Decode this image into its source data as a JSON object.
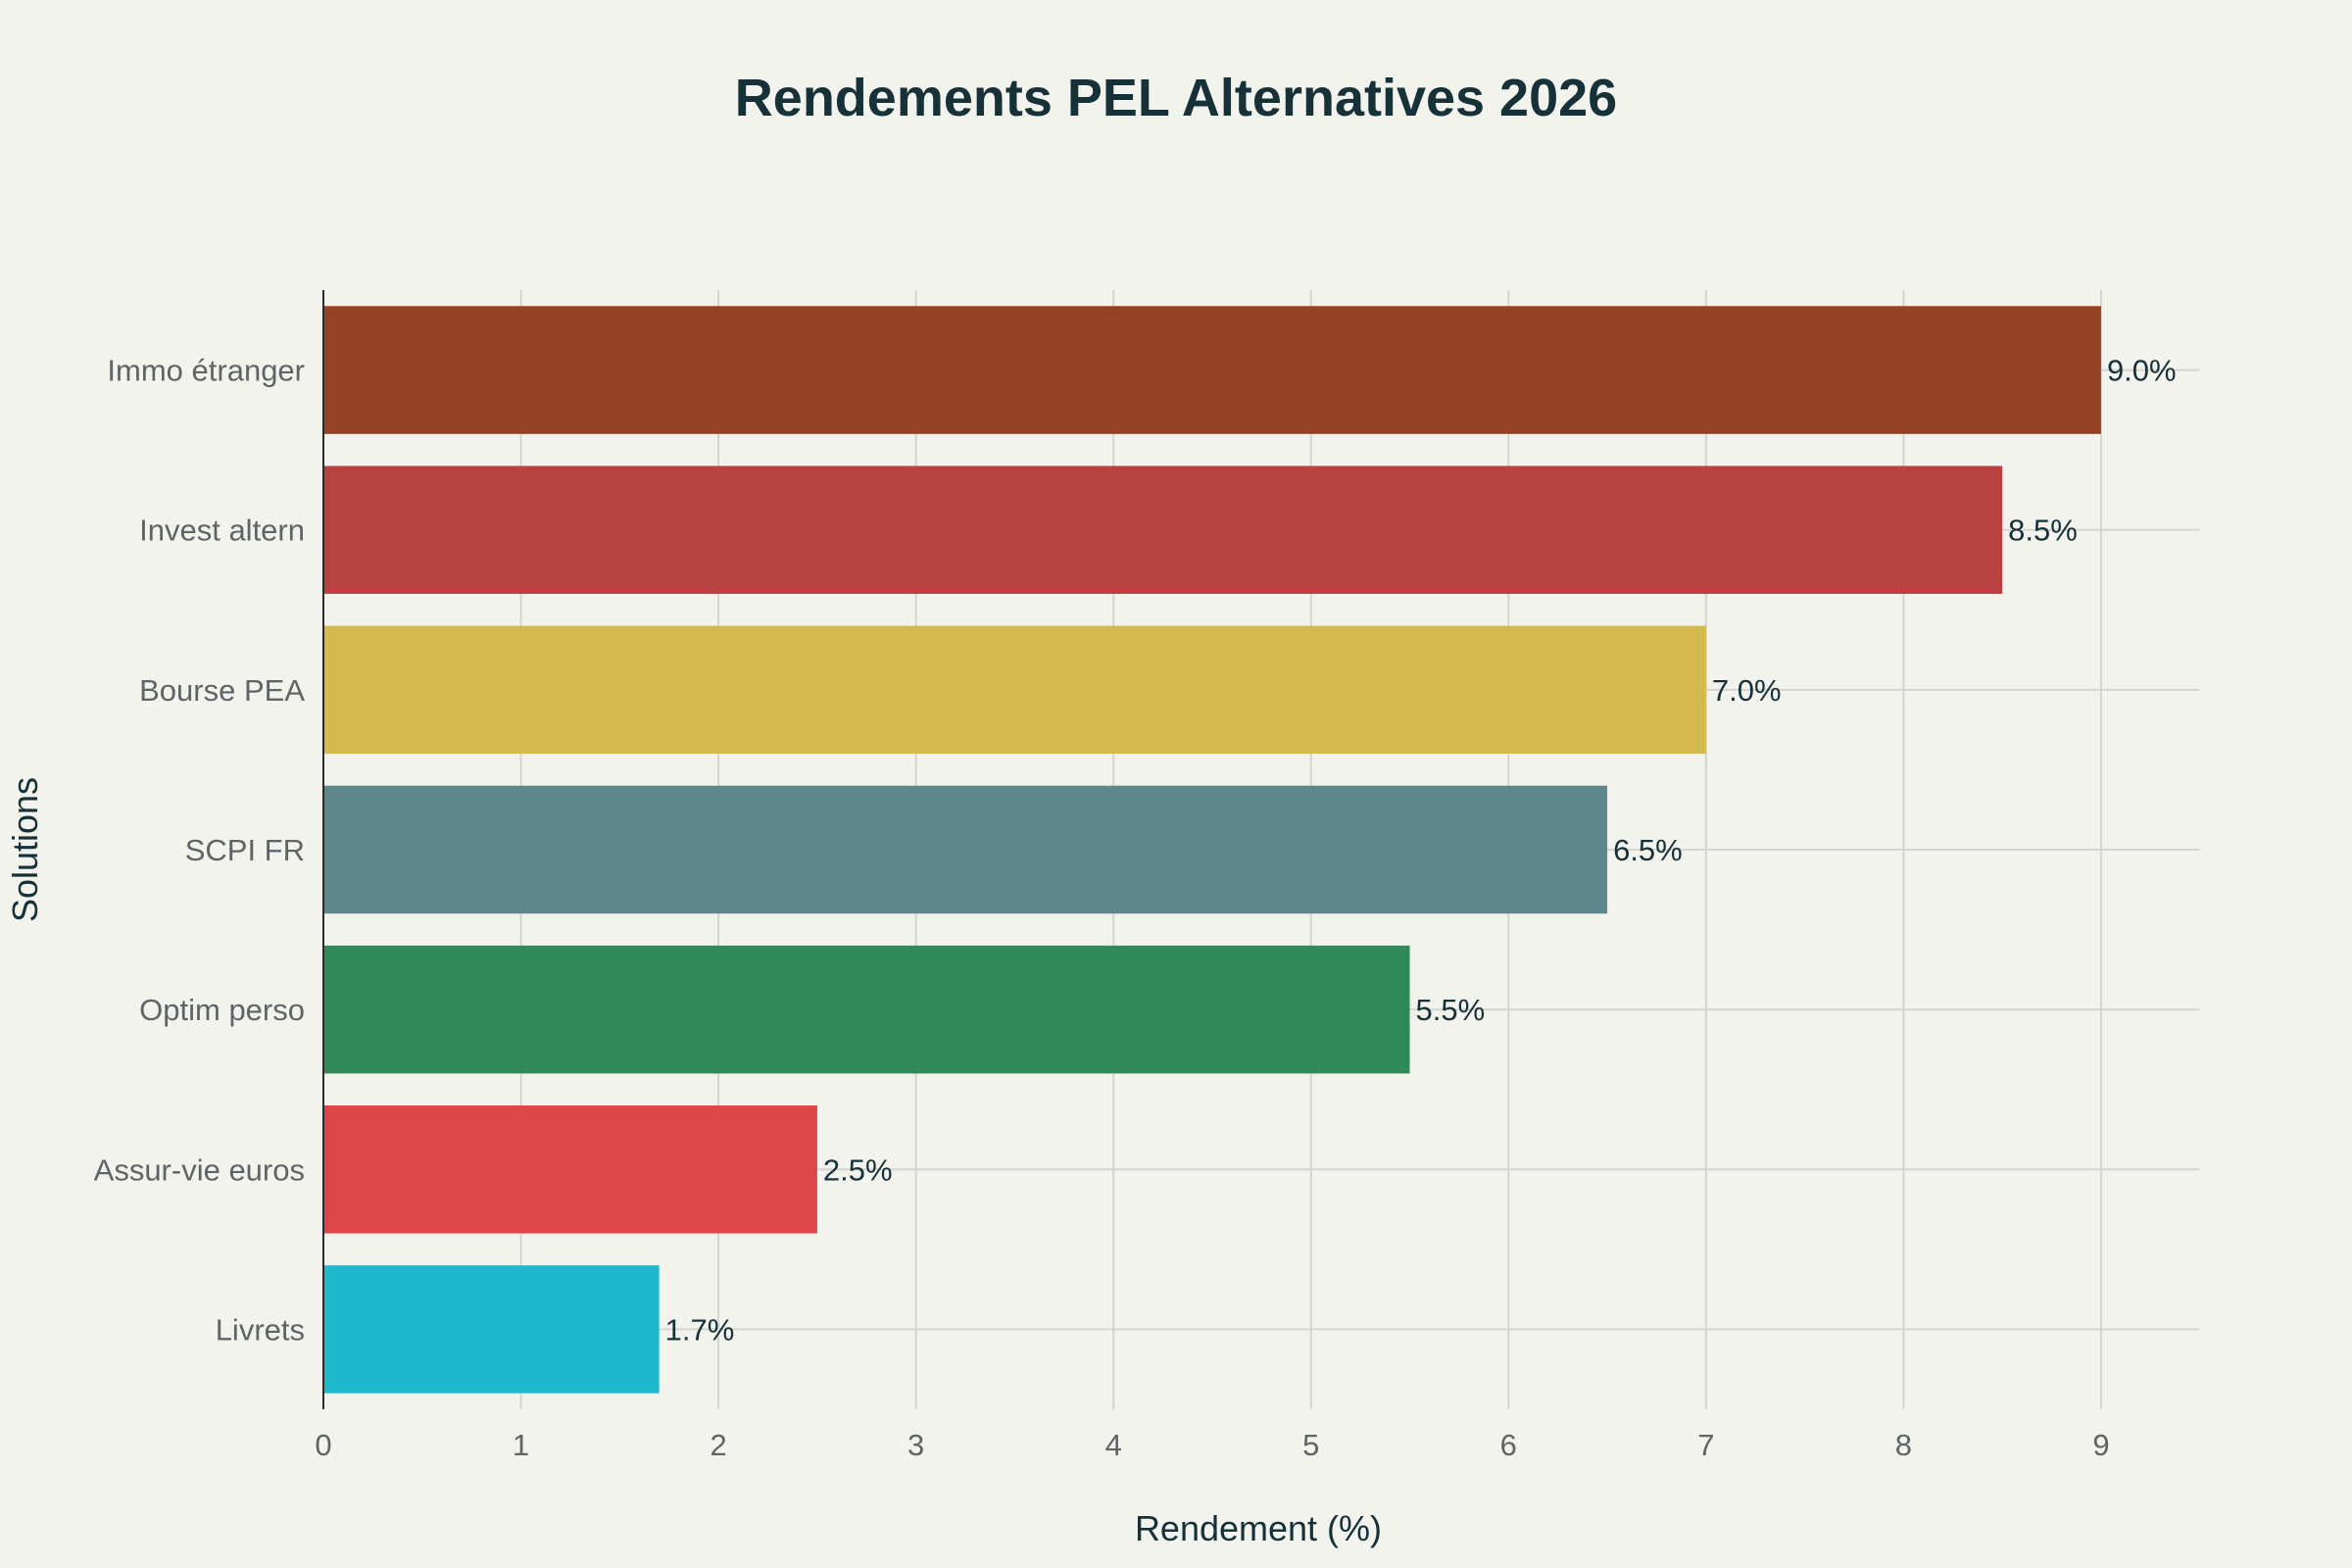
{
  "chart_data": {
    "type": "bar",
    "orientation": "horizontal",
    "title": "Rendements PEL Alternatives 2026",
    "xlabel": "Rendement (%)",
    "ylabel": "Solutions",
    "categories": [
      "Immo étranger",
      "Invest altern",
      "Bourse PEA",
      "SCPI FR",
      "Optim perso",
      "Assur-vie euros",
      "Livrets"
    ],
    "values": [
      9.0,
      8.5,
      7.0,
      6.5,
      5.5,
      2.5,
      1.7
    ],
    "data_labels": [
      "9.0%",
      "8.5%",
      "7.0%",
      "6.5%",
      "5.5%",
      "2.5%",
      "1.7%"
    ],
    "colors": [
      "#944325",
      "#b84141",
      "#d3b94e",
      "#5e878c",
      "#2f8a57",
      "#dc4649",
      "#20b8cd"
    ],
    "xticks": [
      "0",
      "1",
      "2",
      "3",
      "4",
      "5",
      "6",
      "7",
      "8",
      "9"
    ],
    "xlim": [
      0,
      9.5
    ],
    "grid": true
  }
}
